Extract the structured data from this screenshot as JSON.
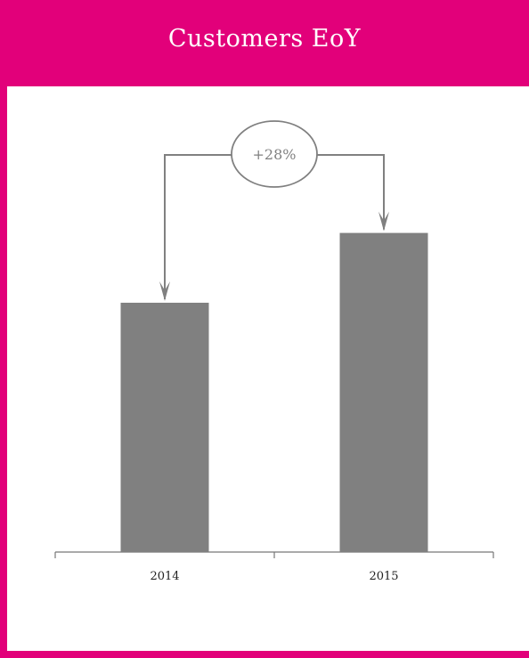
{
  "header": {
    "title": "Customers EoY"
  },
  "colors": {
    "accent": "#e2007a",
    "bar": "#808080",
    "axis": "#777777",
    "annotation": "#808080"
  },
  "chart_data": {
    "type": "bar",
    "title": "Customers EoY",
    "categories": [
      "2014",
      "2015"
    ],
    "values": [
      100,
      128
    ],
    "xlabel": "",
    "ylabel": "",
    "ylim": [
      0,
      140
    ],
    "grid": false,
    "legend": "none",
    "annotation": {
      "label": "+28%",
      "from": "2014",
      "to": "2015"
    }
  }
}
